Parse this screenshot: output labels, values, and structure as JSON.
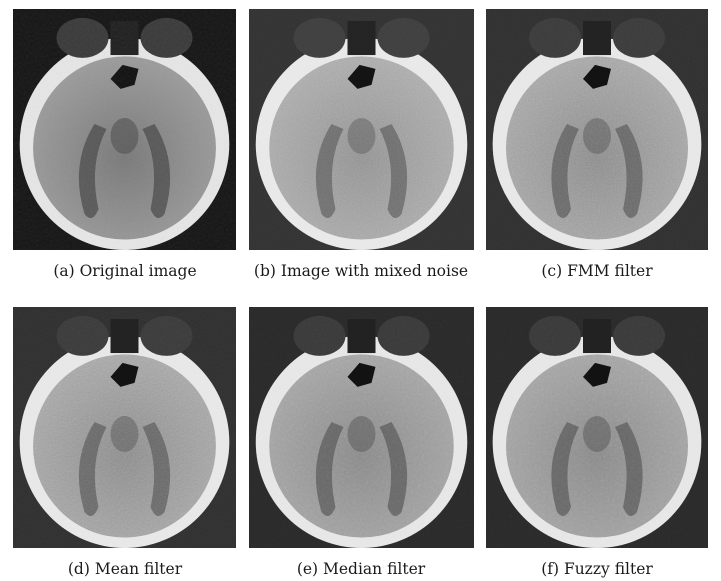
{
  "figure": {
    "panels": [
      {
        "caption": "(a) Original image"
      },
      {
        "caption": "(b) Image with mixed noise"
      },
      {
        "caption": "(c) FMM filter"
      },
      {
        "caption": "(d) Mean filter"
      },
      {
        "caption": "(e) Median filter"
      },
      {
        "caption": "(f) Fuzzy filter"
      }
    ]
  }
}
